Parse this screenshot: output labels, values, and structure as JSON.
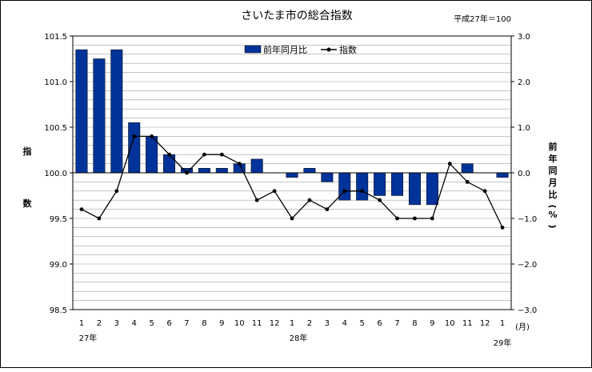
{
  "chart_data": {
    "type": "bar+line",
    "title": "さいたま市の総合指数",
    "note": "平成27年＝100",
    "categories": [
      "1",
      "2",
      "3",
      "4",
      "5",
      "6",
      "7",
      "8",
      "9",
      "10",
      "11",
      "12",
      "1",
      "2",
      "3",
      "4",
      "5",
      "6",
      "7",
      "8",
      "9",
      "10",
      "11",
      "12",
      "1"
    ],
    "x_unit": "(月)",
    "year_labels": [
      {
        "text": "27年",
        "index": 0
      },
      {
        "text": "28年",
        "index": 12
      },
      {
        "text": "29年",
        "index": 24
      }
    ],
    "series": [
      {
        "name": "前年同月比",
        "kind": "bar",
        "axis": "right",
        "color": "#003399",
        "values": [
          2.7,
          2.5,
          2.7,
          1.1,
          0.8,
          0.4,
          0.1,
          0.1,
          0.1,
          0.2,
          0.3,
          0.0,
          -0.1,
          0.1,
          -0.2,
          -0.6,
          -0.6,
          -0.5,
          -0.5,
          -0.7,
          -0.7,
          0.0,
          0.2,
          0.0,
          -0.1
        ]
      },
      {
        "name": "指数",
        "kind": "line",
        "axis": "left",
        "color": "#000000",
        "values": [
          99.6,
          99.5,
          99.8,
          100.4,
          100.4,
          100.2,
          100.0,
          100.2,
          100.2,
          100.1,
          99.7,
          99.8,
          99.5,
          99.7,
          99.6,
          99.8,
          99.8,
          99.7,
          99.5,
          99.5,
          99.5,
          100.1,
          99.9,
          99.8,
          99.4
        ]
      }
    ],
    "left_axis": {
      "label": "指数",
      "ylim": [
        98.5,
        101.5
      ],
      "ticks": [
        "98.5",
        "99.0",
        "99.5",
        "100.0",
        "100.5",
        "101.0",
        "101.5"
      ]
    },
    "right_axis": {
      "label": "前年同月比(%)",
      "ylim": [
        -3.0,
        3.0
      ],
      "ticks": [
        "-3.0",
        "-2.0",
        "-1.0",
        "0.0",
        "1.0",
        "2.0",
        "3.0"
      ]
    },
    "grid": true,
    "legend_position": "top-center"
  }
}
